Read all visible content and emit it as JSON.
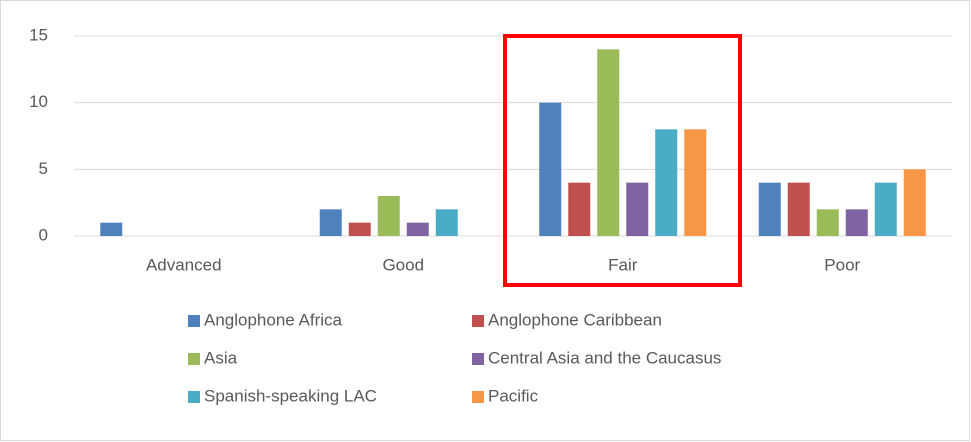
{
  "chart_data": {
    "type": "bar",
    "categories": [
      "Advanced",
      "Good",
      "Fair",
      "Poor"
    ],
    "series": [
      {
        "name": "Anglophone Africa",
        "color": "#4f81bd",
        "values": [
          1,
          2,
          10,
          4
        ]
      },
      {
        "name": "Anglophone Caribbean",
        "color": "#c0504d",
        "values": [
          0,
          1,
          4,
          4
        ]
      },
      {
        "name": "Asia",
        "color": "#9bbb59",
        "values": [
          0,
          3,
          14,
          2
        ]
      },
      {
        "name": "Central Asia and the Caucasus",
        "color": "#8064a2",
        "values": [
          0,
          1,
          4,
          2
        ]
      },
      {
        "name": "Spanish-speaking LAC",
        "color": "#4bacc6",
        "values": [
          0,
          2,
          8,
          4
        ]
      },
      {
        "name": "Pacific",
        "color": "#f79646",
        "values": [
          0,
          0,
          8,
          5
        ]
      }
    ],
    "ylim": [
      0,
      15
    ],
    "yticks": [
      0,
      5,
      10,
      15
    ],
    "grid": true
  }
}
